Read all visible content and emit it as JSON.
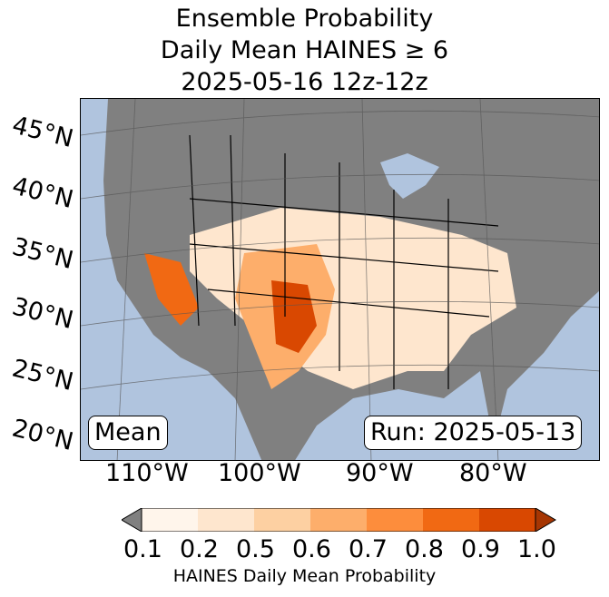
{
  "title": {
    "line1": "Ensemble Probability",
    "line2": "Daily Mean HAINES ≥ 6",
    "line3": "2025-05-16 12z-12z"
  },
  "map": {
    "lat_labels": [
      "45°N",
      "40°N",
      "35°N",
      "30°N",
      "25°N",
      "20°N"
    ],
    "lon_labels": [
      "110°W",
      "100°W",
      "90°W",
      "80°W"
    ],
    "stat_box": "Mean",
    "run_box": "Run: 2025-05-13",
    "colors": {
      "ocean": "#b0c4de",
      "land_low": "#808080",
      "border": "#000000"
    }
  },
  "colorbar": {
    "ticks": [
      "0.1",
      "0.2",
      "0.5",
      "0.6",
      "0.7",
      "0.8",
      "0.9",
      "1.0"
    ],
    "label": "HAINES Daily Mean Probability",
    "colors": [
      "#fff5eb",
      "#fee6ce",
      "#fdd0a2",
      "#fdae6b",
      "#fd8d3c",
      "#f16913",
      "#d94801",
      "#a63603"
    ],
    "under_color": "#808080"
  }
}
